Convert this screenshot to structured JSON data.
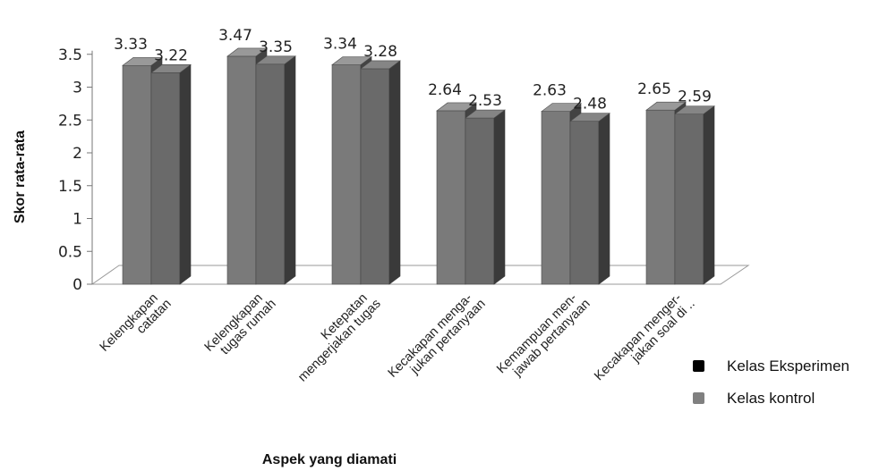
{
  "chart_data": {
    "type": "bar",
    "categories": [
      [
        "Kelengkapan",
        "catatan"
      ],
      [
        "Kelengkapan",
        "tugas rumah"
      ],
      [
        "Ketepatan",
        "mengerjakan tugas"
      ],
      [
        "Kecakapan menga-",
        "jukan pertanyaan"
      ],
      [
        "Kemampuan men-",
        "jawab pertanyaan"
      ],
      [
        "Kecakapan menger-",
        "jakan soal di .."
      ]
    ],
    "series": [
      {
        "name": "Kelas Eksperimen",
        "values": [
          3.33,
          3.47,
          3.34,
          2.64,
          2.63,
          2.65
        ],
        "color": "#7a7a7a"
      },
      {
        "name": "Kelas kontrol",
        "values": [
          3.22,
          3.35,
          3.28,
          2.53,
          2.48,
          2.59
        ],
        "color": "#6a6a6a"
      }
    ],
    "value_labels": [
      [
        "3.33",
        "3.47",
        "3.34",
        "2.64",
        "2.63",
        "2.65"
      ],
      [
        "3.22",
        "3.35",
        "3.28",
        "2.53",
        "2.48",
        "2.59"
      ]
    ],
    "yticks": [
      "0",
      "0.5",
      "1",
      "1.5",
      "2",
      "2.5",
      "3",
      "3.5"
    ],
    "ylim": [
      0,
      3.5
    ],
    "xlabel": "Aspek yang diamati",
    "ylabel": "Skor rata-rata",
    "legend": [
      {
        "label": "Kelas Eksperimen",
        "color": "#000000"
      },
      {
        "label": "Kelas kontrol",
        "color": "#808080"
      }
    ],
    "legend_position": "right",
    "style": "3d-column"
  }
}
